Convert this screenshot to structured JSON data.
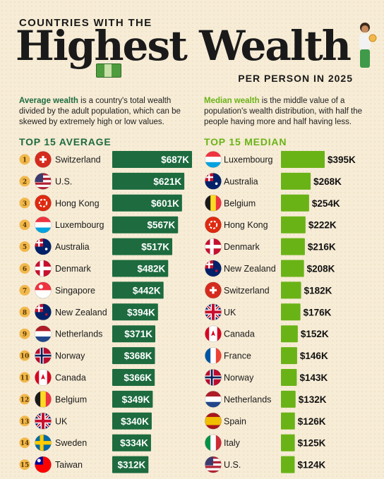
{
  "header": {
    "pre_title": "COUNTRIES WITH THE",
    "main_title": "Highest Wealth",
    "subtitle": "PER PERSON IN 2025"
  },
  "descriptions": {
    "average_term": "Average wealth",
    "average_text": " is a country's total wealth divided by the adult population, which can be skewed by extremely high or low values.",
    "median_term": "Median wealth",
    "median_text": " is the middle value of a population's wealth distribution, with half the people having more and half having less."
  },
  "colors": {
    "background": "#f7ecd6",
    "average_bar": "#1d6b3f",
    "median_bar": "#6ab317",
    "rank_badge": "#f2b84b"
  },
  "chart_data": [
    {
      "type": "bar",
      "title": "TOP 15 AVERAGE",
      "orientation": "horizontal",
      "categories": [
        "Switzerland",
        "U.S.",
        "Hong Kong",
        "Luxembourg",
        "Australia",
        "Denmark",
        "Singapore",
        "New Zealand",
        "Netherlands",
        "Norway",
        "Canada",
        "Belgium",
        "UK",
        "Sweden",
        "Taiwan"
      ],
      "values": [
        687,
        621,
        601,
        567,
        517,
        482,
        442,
        394,
        371,
        368,
        366,
        349,
        340,
        334,
        312
      ],
      "labels": [
        "$687K",
        "$621K",
        "$601K",
        "$567K",
        "$517K",
        "$482K",
        "$442K",
        "$394K",
        "$371K",
        "$368K",
        "$366K",
        "$349K",
        "$340K",
        "$334K",
        "$312K"
      ],
      "ranks": [
        "1",
        "2",
        "3",
        "4",
        "5",
        "6",
        "7",
        "8",
        "9",
        "10",
        "11",
        "12",
        "13",
        "14",
        "15"
      ],
      "unit": "thousand USD",
      "xlim": [
        0,
        687
      ]
    },
    {
      "type": "bar",
      "title": "TOP 15 MEDIAN",
      "orientation": "horizontal",
      "categories": [
        "Luxembourg",
        "Australia",
        "Belgium",
        "Hong Kong",
        "Denmark",
        "New Zealand",
        "Switzerland",
        "UK",
        "Canada",
        "France",
        "Norway",
        "Netherlands",
        "Spain",
        "Italy",
        "U.S."
      ],
      "values": [
        395,
        268,
        254,
        222,
        216,
        208,
        182,
        176,
        152,
        146,
        143,
        132,
        126,
        125,
        124
      ],
      "labels": [
        "$395K",
        "$268K",
        "$254K",
        "$222K",
        "$216K",
        "$208K",
        "$182K",
        "$176K",
        "$152K",
        "$146K",
        "$143K",
        "$132K",
        "$126K",
        "$125K",
        "$124K"
      ],
      "unit": "thousand USD",
      "xlim": [
        0,
        395
      ]
    }
  ]
}
